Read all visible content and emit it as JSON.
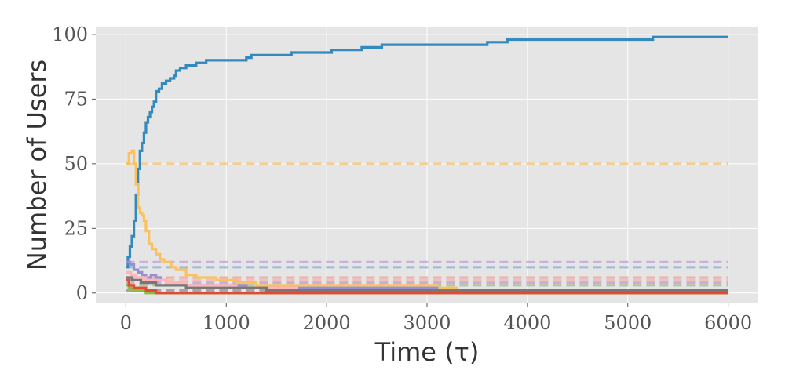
{
  "chart_data": {
    "type": "line",
    "xlabel": "Time (τ)",
    "ylabel": "Number of Users",
    "xlim": [
      -300,
      6300
    ],
    "ylim": [
      -4,
      103
    ],
    "xticks": [
      0,
      1000,
      2000,
      3000,
      4000,
      5000,
      6000
    ],
    "yticks": [
      0,
      25,
      50,
      75,
      100
    ],
    "grid": true,
    "background": "#e5e5e5",
    "series": [
      {
        "color": "#348abd",
        "dashed": false,
        "step": true,
        "points": [
          [
            0,
            10
          ],
          [
            20,
            14
          ],
          [
            40,
            18
          ],
          [
            60,
            22
          ],
          [
            80,
            28
          ],
          [
            100,
            38
          ],
          [
            120,
            48
          ],
          [
            140,
            55
          ],
          [
            160,
            58
          ],
          [
            180,
            62
          ],
          [
            200,
            66
          ],
          [
            220,
            68
          ],
          [
            240,
            70
          ],
          [
            260,
            72
          ],
          [
            280,
            74
          ],
          [
            300,
            78
          ],
          [
            330,
            79
          ],
          [
            360,
            81
          ],
          [
            400,
            82
          ],
          [
            440,
            83
          ],
          [
            480,
            84
          ],
          [
            500,
            86
          ],
          [
            540,
            87
          ],
          [
            600,
            88
          ],
          [
            700,
            89
          ],
          [
            800,
            90
          ],
          [
            1200,
            91
          ],
          [
            1250,
            92
          ],
          [
            1650,
            93
          ],
          [
            2050,
            94
          ],
          [
            2350,
            95
          ],
          [
            2550,
            96
          ],
          [
            3600,
            97
          ],
          [
            3800,
            98
          ],
          [
            5250,
            99
          ],
          [
            6000,
            99
          ]
        ]
      },
      {
        "color": "#fbc15e",
        "dashed": false,
        "step": true,
        "points": [
          [
            0,
            50
          ],
          [
            30,
            54
          ],
          [
            60,
            55
          ],
          [
            80,
            50
          ],
          [
            100,
            42
          ],
          [
            120,
            33
          ],
          [
            140,
            31
          ],
          [
            160,
            30
          ],
          [
            180,
            28
          ],
          [
            200,
            24
          ],
          [
            230,
            19
          ],
          [
            260,
            17
          ],
          [
            300,
            15
          ],
          [
            340,
            13
          ],
          [
            380,
            12
          ],
          [
            450,
            10
          ],
          [
            500,
            9
          ],
          [
            600,
            7
          ],
          [
            700,
            6
          ],
          [
            900,
            5
          ],
          [
            1100,
            4
          ],
          [
            1300,
            3
          ],
          [
            3100,
            2
          ],
          [
            3300,
            1
          ],
          [
            6000,
            1
          ]
        ]
      },
      {
        "color": "#988ed5",
        "dashed": false,
        "step": true,
        "points": [
          [
            0,
            12
          ],
          [
            40,
            11
          ],
          [
            80,
            9
          ],
          [
            120,
            8
          ],
          [
            160,
            7
          ],
          [
            200,
            6
          ],
          [
            250,
            7
          ],
          [
            300,
            6
          ],
          [
            350,
            5
          ],
          [
            400,
            4
          ],
          [
            500,
            3
          ],
          [
            1200,
            2
          ],
          [
            3100,
            1
          ],
          [
            6000,
            1
          ]
        ]
      },
      {
        "color": "#ffb5b8",
        "dashed": false,
        "step": true,
        "points": [
          [
            0,
            8
          ],
          [
            50,
            7
          ],
          [
            100,
            6
          ],
          [
            200,
            5
          ],
          [
            400,
            4
          ],
          [
            600,
            3
          ],
          [
            1100,
            2
          ],
          [
            1700,
            1
          ],
          [
            6000,
            1
          ]
        ]
      },
      {
        "color": "#777777",
        "dashed": false,
        "step": true,
        "points": [
          [
            0,
            6
          ],
          [
            60,
            5
          ],
          [
            150,
            4
          ],
          [
            300,
            3
          ],
          [
            600,
            2
          ],
          [
            1400,
            1
          ],
          [
            6000,
            1
          ]
        ]
      },
      {
        "color": "#8eba42",
        "dashed": false,
        "step": true,
        "points": [
          [
            0,
            3
          ],
          [
            30,
            2
          ],
          [
            60,
            1
          ],
          [
            200,
            0
          ],
          [
            6000,
            0
          ]
        ]
      },
      {
        "color": "#e24a33",
        "dashed": false,
        "step": true,
        "points": [
          [
            0,
            5
          ],
          [
            30,
            3
          ],
          [
            80,
            2
          ],
          [
            200,
            1
          ],
          [
            300,
            0
          ],
          [
            6000,
            0
          ]
        ]
      },
      {
        "color": "#c5a8d8",
        "dashed": true,
        "step": false,
        "points": [
          [
            0,
            12
          ],
          [
            6000,
            12
          ]
        ]
      },
      {
        "color": "#8fb4d4",
        "dashed": true,
        "step": false,
        "points": [
          [
            0,
            10
          ],
          [
            6000,
            10
          ]
        ]
      },
      {
        "color": "#f5c97f",
        "dashed": true,
        "step": false,
        "points": [
          [
            0,
            50
          ],
          [
            6000,
            50
          ]
        ]
      },
      {
        "color": "#f2a49a",
        "dashed": true,
        "step": false,
        "points": [
          [
            0,
            6
          ],
          [
            6000,
            6
          ]
        ]
      },
      {
        "color": "#f5b9b4",
        "dashed": true,
        "step": false,
        "points": [
          [
            0,
            5
          ],
          [
            6000,
            5
          ]
        ]
      },
      {
        "color": "#bba8d8",
        "dashed": true,
        "step": false,
        "points": [
          [
            0,
            4
          ],
          [
            6000,
            4
          ]
        ]
      },
      {
        "color": "#a8c088",
        "dashed": true,
        "step": false,
        "points": [
          [
            0,
            3
          ],
          [
            6000,
            3
          ]
        ]
      },
      {
        "color": "#999999",
        "dashed": true,
        "step": false,
        "points": [
          [
            0,
            1
          ],
          [
            6000,
            1
          ]
        ]
      }
    ]
  }
}
